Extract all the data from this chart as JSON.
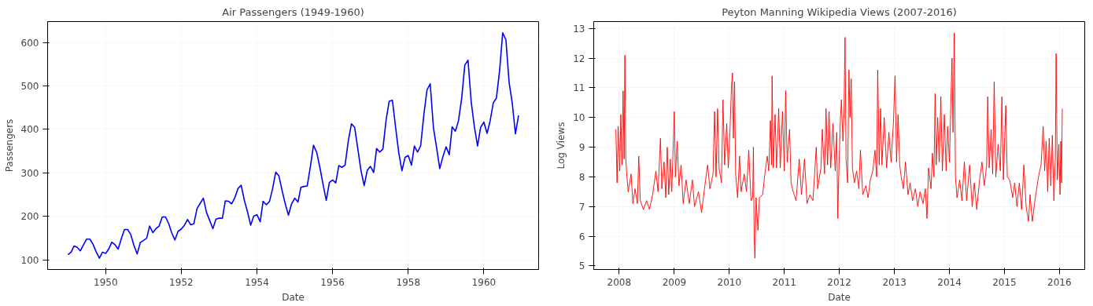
{
  "chart_data": [
    {
      "type": "line",
      "title": "Air Passengers (1949-1960)",
      "xlabel": "Date",
      "ylabel": "Passengers",
      "grid": true,
      "xlim": [
        "1948-06-19",
        "1961-06-13"
      ],
      "xticks": [
        "1950",
        "1952",
        "1954",
        "1956",
        "1958",
        "1960"
      ],
      "ylim": [
        78.1,
        647.9
      ],
      "yticks": [
        100,
        200,
        300,
        400,
        500,
        600
      ],
      "x": [
        "1949-01",
        "1949-02",
        "1949-03",
        "1949-04",
        "1949-05",
        "1949-06",
        "1949-07",
        "1949-08",
        "1949-09",
        "1949-10",
        "1949-11",
        "1949-12",
        "1950-01",
        "1950-02",
        "1950-03",
        "1950-04",
        "1950-05",
        "1950-06",
        "1950-07",
        "1950-08",
        "1950-09",
        "1950-10",
        "1950-11",
        "1950-12",
        "1951-01",
        "1951-02",
        "1951-03",
        "1951-04",
        "1951-05",
        "1951-06",
        "1951-07",
        "1951-08",
        "1951-09",
        "1951-10",
        "1951-11",
        "1951-12",
        "1952-01",
        "1952-02",
        "1952-03",
        "1952-04",
        "1952-05",
        "1952-06",
        "1952-07",
        "1952-08",
        "1952-09",
        "1952-10",
        "1952-11",
        "1952-12",
        "1953-01",
        "1953-02",
        "1953-03",
        "1953-04",
        "1953-05",
        "1953-06",
        "1953-07",
        "1953-08",
        "1953-09",
        "1953-10",
        "1953-11",
        "1953-12",
        "1954-01",
        "1954-02",
        "1954-03",
        "1954-04",
        "1954-05",
        "1954-06",
        "1954-07",
        "1954-08",
        "1954-09",
        "1954-10",
        "1954-11",
        "1954-12",
        "1955-01",
        "1955-02",
        "1955-03",
        "1955-04",
        "1955-05",
        "1955-06",
        "1955-07",
        "1955-08",
        "1955-09",
        "1955-10",
        "1955-11",
        "1955-12",
        "1956-01",
        "1956-02",
        "1956-03",
        "1956-04",
        "1956-05",
        "1956-06",
        "1956-07",
        "1956-08",
        "1956-09",
        "1956-10",
        "1956-11",
        "1956-12",
        "1957-01",
        "1957-02",
        "1957-03",
        "1957-04",
        "1957-05",
        "1957-06",
        "1957-07",
        "1957-08",
        "1957-09",
        "1957-10",
        "1957-11",
        "1957-12",
        "1958-01",
        "1958-02",
        "1958-03",
        "1958-04",
        "1958-05",
        "1958-06",
        "1958-07",
        "1958-08",
        "1958-09",
        "1958-10",
        "1958-11",
        "1958-12",
        "1959-01",
        "1959-02",
        "1959-03",
        "1959-04",
        "1959-05",
        "1959-06",
        "1959-07",
        "1959-08",
        "1959-09",
        "1959-10",
        "1959-11",
        "1959-12",
        "1960-01",
        "1960-02",
        "1960-03",
        "1960-04",
        "1960-05",
        "1960-06",
        "1960-07",
        "1960-08",
        "1960-09",
        "1960-10",
        "1960-11",
        "1960-12"
      ],
      "series": [
        {
          "color": "#0000ff",
          "values": [
            112,
            118,
            132,
            129,
            121,
            135,
            148,
            148,
            136,
            119,
            104,
            118,
            115,
            126,
            141,
            135,
            125,
            149,
            170,
            170,
            158,
            133,
            114,
            140,
            145,
            150,
            178,
            163,
            172,
            178,
            199,
            199,
            184,
            162,
            146,
            166,
            171,
            180,
            193,
            181,
            183,
            218,
            230,
            242,
            209,
            191,
            172,
            194,
            196,
            196,
            236,
            235,
            229,
            243,
            264,
            272,
            237,
            211,
            180,
            201,
            204,
            188,
            235,
            227,
            234,
            264,
            302,
            293,
            259,
            229,
            203,
            229,
            242,
            233,
            267,
            269,
            270,
            315,
            364,
            347,
            312,
            274,
            237,
            278,
            284,
            277,
            317,
            313,
            318,
            374,
            413,
            405,
            355,
            306,
            271,
            306,
            315,
            301,
            356,
            348,
            355,
            422,
            465,
            467,
            404,
            347,
            305,
            336,
            340,
            318,
            362,
            348,
            363,
            435,
            491,
            505,
            404,
            359,
            310,
            337,
            360,
            342,
            406,
            396,
            420,
            472,
            548,
            559,
            463,
            407,
            362,
            405,
            417,
            391,
            419,
            461,
            472,
            535,
            622,
            606,
            508,
            461,
            390,
            432
          ]
        }
      ]
    },
    {
      "type": "line",
      "title": "Peyton Manning Wikipedia Views (2007-2016)",
      "xlabel": "Date",
      "ylabel": "Log Views",
      "grid": true,
      "xlim": [
        "2007-07-16",
        "2016-06-17"
      ],
      "xticks": [
        "2008",
        "2009",
        "2010",
        "2011",
        "2012",
        "2013",
        "2014",
        "2015",
        "2016"
      ],
      "ylim": [
        4.88,
        13.23
      ],
      "yticks": [
        5,
        6,
        7,
        8,
        9,
        10,
        11,
        12,
        13
      ],
      "x": [
        "2007-12-10",
        "2007-12-18",
        "2007-12-25",
        "2008-01-05",
        "2008-01-12",
        "2008-01-20",
        "2008-01-27",
        "2008-02-03",
        "2008-02-08",
        "2008-02-14",
        "2008-02-20",
        "2008-03-01",
        "2008-03-20",
        "2008-04-01",
        "2008-04-15",
        "2008-05-01",
        "2008-05-10",
        "2008-05-20",
        "2008-06-10",
        "2008-07-01",
        "2008-07-20",
        "2008-08-10",
        "2008-09-01",
        "2008-09-15",
        "2008-10-01",
        "2008-10-10",
        "2008-10-25",
        "2008-11-05",
        "2008-11-15",
        "2008-11-25",
        "2008-12-05",
        "2008-12-15",
        "2009-01-01",
        "2009-01-08",
        "2009-01-20",
        "2009-02-01",
        "2009-02-15",
        "2009-03-01",
        "2009-03-20",
        "2009-04-10",
        "2009-05-01",
        "2009-05-15",
        "2009-06-10",
        "2009-07-01",
        "2009-07-20",
        "2009-08-10",
        "2009-08-25",
        "2009-09-15",
        "2009-09-25",
        "2009-10-05",
        "2009-10-15",
        "2009-10-25",
        "2009-11-10",
        "2009-11-20",
        "2009-12-01",
        "2009-12-15",
        "2009-12-25",
        "2010-01-05",
        "2010-01-15",
        "2010-01-22",
        "2010-01-28",
        "2010-02-05",
        "2010-02-12",
        "2010-02-25",
        "2010-03-10",
        "2010-03-20",
        "2010-04-10",
        "2010-04-25",
        "2010-05-10",
        "2010-05-25",
        "2010-06-05",
        "2010-06-10",
        "2010-06-15",
        "2010-06-20",
        "2010-06-28",
        "2010-07-10",
        "2010-07-20",
        "2010-08-10",
        "2010-08-25",
        "2010-09-10",
        "2010-09-20",
        "2010-10-01",
        "2010-10-08",
        "2010-10-12",
        "2010-10-20",
        "2010-11-01",
        "2010-11-10",
        "2010-11-25",
        "2010-12-05",
        "2010-12-20",
        "2011-01-01",
        "2011-01-10",
        "2011-01-20",
        "2011-02-05",
        "2011-02-15",
        "2011-03-01",
        "2011-03-20",
        "2011-04-10",
        "2011-04-25",
        "2011-05-15",
        "2011-06-01",
        "2011-06-20",
        "2011-07-10",
        "2011-08-01",
        "2011-08-10",
        "2011-09-01",
        "2011-09-10",
        "2011-09-25",
        "2011-10-05",
        "2011-10-15",
        "2011-10-25",
        "2011-11-05",
        "2011-11-20",
        "2011-12-05",
        "2011-12-15",
        "2011-12-22",
        "2011-12-28",
        "2012-01-08",
        "2012-01-15",
        "2012-01-25",
        "2012-02-01",
        "2012-02-08",
        "2012-02-15",
        "2012-02-25",
        "2012-03-05",
        "2012-03-12",
        "2012-03-20",
        "2012-03-28",
        "2012-04-10",
        "2012-04-25",
        "2012-05-10",
        "2012-05-20",
        "2012-06-05",
        "2012-06-25",
        "2012-07-10",
        "2012-07-25",
        "2012-08-10",
        "2012-08-25",
        "2012-09-05",
        "2012-09-12",
        "2012-09-22",
        "2012-10-01",
        "2012-10-10",
        "2012-10-25",
        "2012-11-10",
        "2012-11-25",
        "2012-12-10",
        "2012-12-25",
        "2013-01-05",
        "2013-01-15",
        "2013-01-25",
        "2013-02-05",
        "2013-02-15",
        "2013-03-01",
        "2013-03-15",
        "2013-04-01",
        "2013-04-15",
        "2013-05-01",
        "2013-05-20",
        "2013-06-05",
        "2013-06-20",
        "2013-07-10",
        "2013-07-25",
        "2013-08-05",
        "2013-08-15",
        "2013-09-01",
        "2013-09-10",
        "2013-09-20",
        "2013-09-28",
        "2013-10-05",
        "2013-10-15",
        "2013-10-25",
        "2013-11-05",
        "2013-11-15",
        "2013-11-28",
        "2013-12-10",
        "2013-12-20",
        "2014-01-01",
        "2014-01-10",
        "2014-01-18",
        "2014-01-25",
        "2014-02-02",
        "2014-02-10",
        "2014-02-20",
        "2014-03-10",
        "2014-03-25",
        "2014-04-10",
        "2014-04-25",
        "2014-05-15",
        "2014-06-01",
        "2014-06-15",
        "2014-07-01",
        "2014-07-20",
        "2014-08-05",
        "2014-08-20",
        "2014-09-05",
        "2014-09-12",
        "2014-09-22",
        "2014-10-05",
        "2014-10-15",
        "2014-10-25",
        "2014-11-05",
        "2014-11-20",
        "2014-12-05",
        "2014-12-15",
        "2014-12-25",
        "2015-01-10",
        "2015-01-20",
        "2015-02-05",
        "2015-02-25",
        "2015-03-10",
        "2015-03-25",
        "2015-04-10",
        "2015-04-25",
        "2015-05-10",
        "2015-05-25",
        "2015-06-10",
        "2015-06-20",
        "2015-07-05",
        "2015-07-25",
        "2015-08-15",
        "2015-09-01",
        "2015-09-15",
        "2015-09-25",
        "2015-10-05",
        "2015-10-15",
        "2015-10-25",
        "2015-11-05",
        "2015-11-15",
        "2015-11-25",
        "2015-12-05",
        "2015-12-10",
        "2015-12-18",
        "2015-12-28",
        "2016-01-05",
        "2016-01-10",
        "2016-01-15",
        "2016-01-20"
      ],
      "series": [
        {
          "color": "#ff0000",
          "values": [
            9.6,
            7.8,
            9.7,
            8.2,
            10.1,
            8.4,
            10.9,
            8.6,
            12.1,
            8.6,
            8.1,
            7.5,
            8.1,
            7.1,
            7.6,
            7.1,
            8.7,
            7.2,
            6.9,
            7.2,
            6.9,
            7.4,
            8.2,
            7.5,
            9.3,
            7.6,
            8.5,
            7.3,
            9.0,
            7.4,
            8.6,
            7.5,
            10.2,
            8.0,
            9.2,
            7.7,
            8.4,
            7.1,
            7.9,
            7.1,
            7.9,
            7.0,
            7.5,
            6.8,
            7.6,
            8.4,
            7.6,
            8.1,
            10.2,
            8.0,
            10.3,
            8.3,
            7.8,
            10.6,
            8.4,
            9.8,
            8.3,
            9.5,
            11.0,
            11.5,
            9.3,
            11.2,
            8.1,
            7.3,
            8.7,
            7.5,
            8.1,
            7.5,
            8.9,
            7.2,
            7.3,
            9.0,
            6.0,
            5.26,
            7.3,
            6.2,
            7.3,
            7.4,
            8.1,
            8.7,
            8.2,
            9.9,
            8.4,
            11.4,
            8.3,
            10.1,
            8.3,
            10.3,
            8.3,
            10.2,
            8.2,
            10.9,
            8.5,
            9.6,
            7.8,
            7.5,
            7.2,
            8.6,
            7.4,
            8.6,
            7.1,
            7.4,
            7.2,
            9.0,
            7.6,
            8.3,
            9.6,
            8.1,
            10.3,
            8.4,
            10.2,
            8.3,
            9.8,
            8.2,
            9.5,
            6.6,
            8.0,
            9.9,
            10.6,
            9.2,
            10.1,
            12.7,
            8.6,
            7.8,
            11.6,
            10.0,
            11.3,
            8.3,
            7.8,
            8.2,
            7.6,
            8.9,
            7.4,
            7.7,
            7.3,
            7.9,
            8.2,
            8.9,
            8.0,
            11.6,
            8.4,
            10.3,
            8.4,
            10.0,
            8.3,
            9.5,
            8.5,
            9.8,
            11.4,
            8.5,
            10.1,
            8.4,
            8.0,
            7.6,
            8.5,
            7.4,
            7.8,
            7.2,
            7.6,
            7.0,
            7.5,
            7.1,
            7.6,
            6.6,
            8.3,
            7.6,
            8.8,
            8.0,
            10.8,
            8.4,
            10.0,
            8.5,
            10.7,
            8.2,
            10.1,
            8.2,
            9.7,
            8.5,
            10.4,
            12.0,
            9.5,
            12.85,
            8.0,
            7.3,
            7.9,
            7.2,
            8.5,
            7.2,
            8.4,
            7.0,
            7.8,
            6.9,
            7.9,
            8.5,
            7.7,
            8.4,
            10.7,
            8.3,
            9.6,
            8.1,
            11.2,
            8.0,
            9.1,
            8.2,
            10.7,
            7.9,
            10.4,
            8.0,
            7.9,
            7.3,
            7.8,
            7.0,
            7.8,
            6.9,
            8.4,
            7.0,
            6.5,
            7.4,
            6.5,
            7.3,
            8.0,
            8.4,
            9.7,
            8.2,
            9.2,
            7.5,
            9.3,
            7.7,
            9.4,
            7.2,
            8.6,
            12.15,
            7.9,
            9.1,
            7.4,
            9.2,
            7.8,
            10.3
          ]
        }
      ]
    }
  ]
}
